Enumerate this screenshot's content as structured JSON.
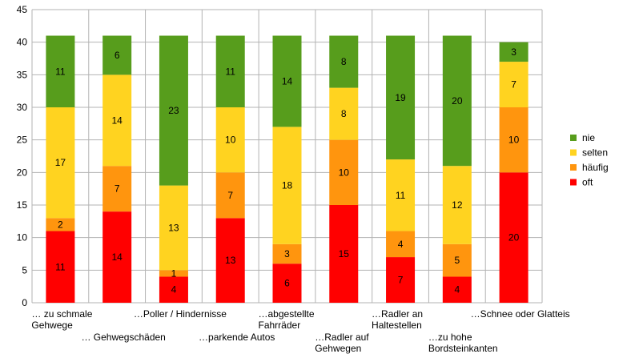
{
  "chart_data": {
    "type": "bar",
    "stacked": true,
    "categories": [
      "… zu schmale\nGehwege",
      "… Gehwegschäden",
      "…Poller / Hindernisse",
      "…parkende Autos",
      "…abgestellte\nFahrräder",
      "…Radler auf\nGehwegen",
      "…Radler an\nHaltestellen",
      "…zu hohe\nBordsteinkanten",
      "…Schnee oder Glatteis"
    ],
    "series": [
      {
        "name": "oft",
        "color": "#ff0000",
        "values": [
          11,
          14,
          4,
          13,
          6,
          15,
          7,
          4,
          20
        ]
      },
      {
        "name": "häufig",
        "color": "#ff950e",
        "values": [
          2,
          7,
          1,
          7,
          3,
          10,
          4,
          5,
          10
        ]
      },
      {
        "name": "selten",
        "color": "#ffd320",
        "values": [
          17,
          14,
          13,
          10,
          18,
          8,
          11,
          12,
          7
        ]
      },
      {
        "name": "nie",
        "color": "#579d1c",
        "values": [
          11,
          6,
          23,
          11,
          14,
          8,
          19,
          20,
          3
        ]
      }
    ],
    "ylim": [
      0,
      45
    ],
    "yticks": [
      0,
      5,
      10,
      15,
      20,
      25,
      30,
      35,
      40,
      45
    ],
    "grid": true,
    "legend_position": "right",
    "legend_order": [
      "nie",
      "selten",
      "häufig",
      "oft"
    ]
  }
}
